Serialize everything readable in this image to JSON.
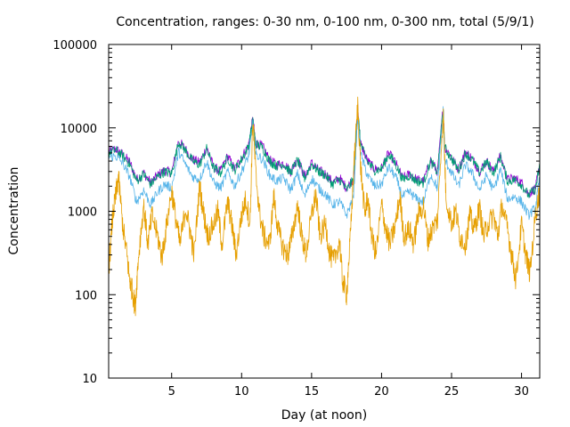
{
  "chart_data": {
    "type": "line",
    "title": "Concentration, ranges: 0-30 nm, 0-100 nm, 0-300 nm, total (5/9/1)",
    "xlabel": "Day (at noon)",
    "ylabel": "Concentration",
    "xlim": [
      0.5,
      31.3
    ],
    "ylim": [
      10,
      100000
    ],
    "y_scale": "log",
    "x_ticks": [
      5,
      10,
      15,
      20,
      25,
      30
    ],
    "x_tick_labels": [
      "5",
      "10",
      "15",
      "20",
      "25",
      "30"
    ],
    "y_ticks": [
      10,
      100,
      1000,
      10000,
      100000
    ],
    "y_tick_labels": [
      "10",
      "100",
      "1000",
      "10000",
      "100000"
    ],
    "grid": false,
    "legend": "none",
    "series": [
      {
        "color": "#9400d3",
        "x": [
          0.5,
          1,
          1.5,
          2,
          2.5,
          3,
          3.5,
          4,
          4.5,
          5,
          5.5,
          6,
          6.5,
          7,
          7.5,
          8,
          8.5,
          9,
          9.5,
          10,
          10.5,
          10.8,
          11,
          11.5,
          12,
          12.5,
          13,
          13.5,
          14,
          14.5,
          15,
          15.5,
          16,
          16.5,
          17,
          17.5,
          18,
          18.3,
          18.5,
          19,
          19.5,
          20,
          20.5,
          21,
          21.5,
          22,
          22.5,
          23,
          23.5,
          24,
          24.4,
          24.5,
          25,
          25.5,
          26,
          26.5,
          27,
          27.5,
          28,
          28.5,
          29,
          29.5,
          30,
          30.5,
          31,
          31.3
        ],
        "values": [
          5200,
          5600,
          4800,
          3900,
          2400,
          2900,
          2200,
          2700,
          3100,
          2900,
          7000,
          5500,
          4200,
          3800,
          5800,
          3400,
          3000,
          4600,
          3200,
          4400,
          6200,
          13000,
          6600,
          6000,
          4100,
          3600,
          3800,
          3000,
          4300,
          2600,
          3800,
          3100,
          2800,
          2200,
          2500,
          1900,
          2500,
          17000,
          6500,
          4000,
          3200,
          3300,
          5000,
          3800,
          2500,
          2800,
          2400,
          2300,
          4100,
          3000,
          18000,
          6000,
          4400,
          3200,
          5200,
          4200,
          3000,
          4000,
          3000,
          4600,
          2400,
          2500,
          2200,
          1600,
          1900,
          3600
        ]
      },
      {
        "color": "#009e73",
        "x": [
          0.5,
          1,
          1.5,
          2,
          2.5,
          3,
          3.5,
          4,
          4.5,
          5,
          5.5,
          6,
          6.5,
          7,
          7.5,
          8,
          8.5,
          9,
          9.5,
          10,
          10.5,
          10.8,
          11,
          11.5,
          12,
          12.5,
          13,
          13.5,
          14,
          14.5,
          15,
          15.5,
          16,
          16.5,
          17,
          17.5,
          18,
          18.3,
          18.5,
          19,
          19.5,
          20,
          20.5,
          21,
          21.5,
          22,
          22.5,
          23,
          23.5,
          24,
          24.4,
          24.5,
          25,
          25.5,
          26,
          26.5,
          27,
          27.5,
          28,
          28.5,
          29,
          29.5,
          30,
          30.5,
          31,
          31.3
        ],
        "values": [
          5000,
          5400,
          4600,
          3700,
          2300,
          2800,
          2100,
          2600,
          3000,
          2800,
          6800,
          5300,
          4000,
          3600,
          5600,
          3300,
          2900,
          4400,
          3100,
          4200,
          6000,
          12500,
          6400,
          5800,
          4000,
          3500,
          3700,
          2900,
          4100,
          2500,
          3700,
          3000,
          2700,
          2100,
          2400,
          1800,
          2400,
          16500,
          6300,
          3900,
          3100,
          3200,
          4800,
          3700,
          2400,
          2700,
          2300,
          2200,
          4000,
          2900,
          17500,
          5800,
          4300,
          3100,
          5000,
          4100,
          2900,
          3900,
          2900,
          4500,
          2300,
          2400,
          2100,
          1550,
          1850,
          3500
        ]
      },
      {
        "color": "#56b4e9",
        "x": [
          0.5,
          1,
          1.5,
          2,
          2.5,
          3,
          3.5,
          4,
          4.5,
          5,
          5.5,
          6,
          6.5,
          7,
          7.5,
          8,
          8.5,
          9,
          9.5,
          10,
          10.5,
          10.8,
          11,
          11.5,
          12,
          12.5,
          13,
          13.5,
          14,
          14.5,
          15,
          15.5,
          16,
          16.5,
          17,
          17.5,
          18,
          18.3,
          18.5,
          19,
          19.5,
          20,
          20.5,
          21,
          21.5,
          22,
          22.5,
          23,
          23.5,
          24,
          24.4,
          24.5,
          25,
          25.5,
          26,
          26.5,
          27,
          27.5,
          28,
          28.5,
          29,
          29.5,
          30,
          30.5,
          31,
          31.3
        ],
        "values": [
          4400,
          4600,
          3800,
          2600,
          1300,
          1800,
          1200,
          1700,
          2100,
          1900,
          5200,
          3600,
          2600,
          2400,
          4000,
          2200,
          1900,
          3000,
          2000,
          3000,
          4600,
          11000,
          4800,
          4200,
          2700,
          2300,
          2500,
          1800,
          2800,
          1500,
          2500,
          1900,
          1600,
          1200,
          1300,
          900,
          1500,
          15000,
          4800,
          2700,
          2000,
          2100,
          3400,
          2600,
          1500,
          1700,
          1400,
          1300,
          2800,
          1900,
          16000,
          4200,
          2900,
          2000,
          3600,
          2800,
          1800,
          2700,
          1800,
          3200,
          1400,
          1500,
          1300,
          900,
          1100,
          2600
        ]
      },
      {
        "color": "#e69f00",
        "x": [
          0.5,
          0.8,
          1,
          1.2,
          1.5,
          1.8,
          2,
          2.2,
          2.4,
          2.6,
          3,
          3.3,
          3.6,
          4,
          4.3,
          4.6,
          5,
          5.3,
          5.6,
          6,
          6.3,
          6.6,
          7,
          7.3,
          7.6,
          8,
          8.3,
          8.6,
          9,
          9.3,
          9.6,
          10,
          10.3,
          10.6,
          10.8,
          11,
          11.3,
          11.6,
          12,
          12.3,
          12.6,
          13,
          13.3,
          13.6,
          14,
          14.3,
          14.6,
          15,
          15.3,
          15.6,
          16,
          16.3,
          16.6,
          17,
          17.2,
          17.5,
          17.8,
          18,
          18.3,
          18.5,
          18.8,
          19,
          19.3,
          19.6,
          20,
          20.3,
          20.6,
          21,
          21.3,
          21.6,
          22,
          22.3,
          22.6,
          23,
          23.3,
          23.6,
          24,
          24.4,
          24.6,
          25,
          25.3,
          25.6,
          26,
          26.3,
          26.6,
          27,
          27.3,
          27.6,
          28,
          28.3,
          28.6,
          29,
          29.3,
          29.6,
          30,
          30.3,
          30.6,
          31,
          31.3
        ],
        "values": [
          200,
          900,
          1500,
          2600,
          700,
          300,
          150,
          110,
          70,
          250,
          1200,
          400,
          900,
          500,
          280,
          600,
          1800,
          800,
          400,
          1100,
          600,
          300,
          2000,
          900,
          500,
          700,
          1000,
          400,
          1300,
          700,
          300,
          900,
          1400,
          700,
          13000,
          3000,
          900,
          500,
          400,
          1500,
          600,
          350,
          300,
          500,
          1200,
          500,
          300,
          900,
          1600,
          500,
          700,
          300,
          250,
          450,
          150,
          100,
          600,
          3000,
          19000,
          3500,
          900,
          1500,
          500,
          300,
          1200,
          600,
          400,
          700,
          1500,
          500,
          600,
          400,
          900,
          1200,
          450,
          600,
          800,
          16000,
          1500,
          700,
          1000,
          500,
          400,
          900,
          600,
          1100,
          500,
          700,
          900,
          500,
          1200,
          600,
          300,
          150,
          700,
          300,
          180,
          900,
          1800
        ]
      }
    ]
  }
}
